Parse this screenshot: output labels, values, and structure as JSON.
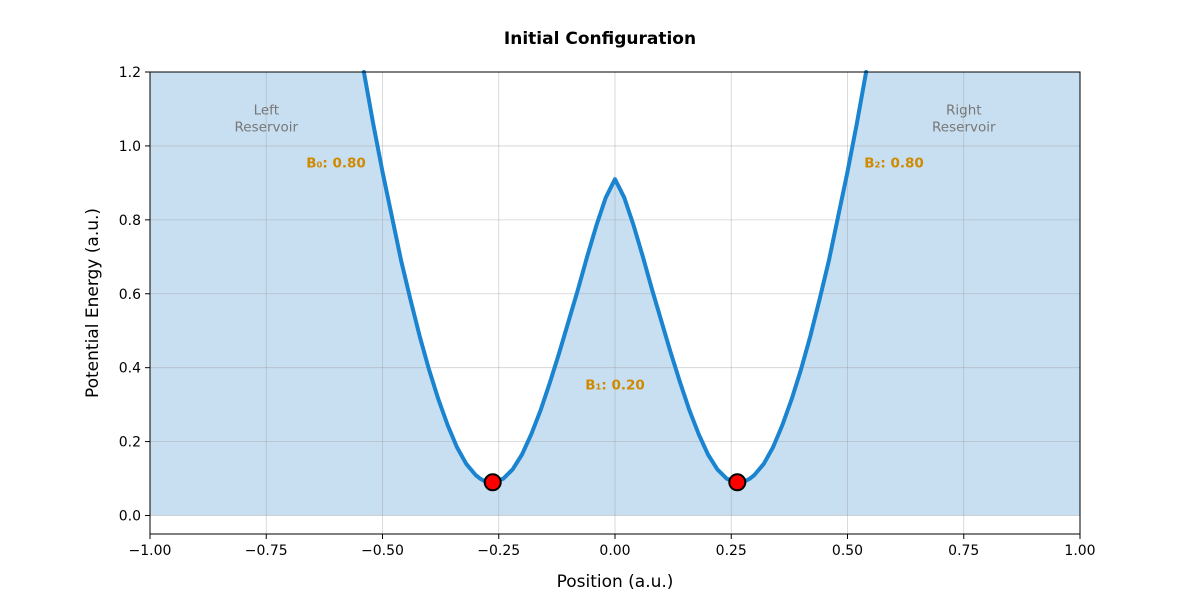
{
  "chart_data": {
    "type": "line",
    "title": "Initial Configuration",
    "xlabel": "Position (a.u.)",
    "ylabel": "Potential Energy (a.u.)",
    "xlim": [
      -1.0,
      1.0
    ],
    "ylim": [
      -0.05,
      1.2
    ],
    "grid": true,
    "x_ticks": [
      -1.0,
      -0.75,
      -0.5,
      -0.25,
      0.0,
      0.25,
      0.5,
      0.75,
      1.0
    ],
    "x_tick_labels": [
      "−1.00",
      "−0.75",
      "−0.50",
      "−0.25",
      "0.00",
      "0.25",
      "0.50",
      "0.75",
      "1.00"
    ],
    "y_ticks": [
      0.0,
      0.2,
      0.4,
      0.6,
      0.8,
      1.0,
      1.2
    ],
    "y_tick_labels": [
      "0.0",
      "0.2",
      "0.4",
      "0.6",
      "0.8",
      "1.0",
      "1.2"
    ],
    "series": [
      {
        "name": "potential",
        "color": "#1a84d0",
        "x": [
          -0.54,
          -0.52,
          -0.5,
          -0.48,
          -0.46,
          -0.44,
          -0.42,
          -0.4,
          -0.38,
          -0.36,
          -0.34,
          -0.32,
          -0.3,
          -0.29,
          -0.28,
          -0.27,
          -0.263,
          -0.255,
          -0.24,
          -0.22,
          -0.2,
          -0.18,
          -0.16,
          -0.14,
          -0.12,
          -0.1,
          -0.08,
          -0.06,
          -0.04,
          -0.02,
          0.0,
          0.02,
          0.04,
          0.06,
          0.08,
          0.1,
          0.12,
          0.14,
          0.16,
          0.18,
          0.2,
          0.22,
          0.24,
          0.255,
          0.263,
          0.27,
          0.28,
          0.29,
          0.3,
          0.32,
          0.34,
          0.36,
          0.38,
          0.4,
          0.42,
          0.44,
          0.46,
          0.48,
          0.5,
          0.52,
          0.54
        ],
        "y": [
          1.2,
          1.06,
          0.93,
          0.81,
          0.69,
          0.585,
          0.485,
          0.395,
          0.315,
          0.245,
          0.185,
          0.14,
          0.11,
          0.1,
          0.093,
          0.091,
          0.09,
          0.092,
          0.1,
          0.125,
          0.165,
          0.22,
          0.285,
          0.36,
          0.44,
          0.525,
          0.61,
          0.7,
          0.785,
          0.86,
          0.91,
          0.86,
          0.785,
          0.7,
          0.61,
          0.525,
          0.44,
          0.36,
          0.285,
          0.22,
          0.165,
          0.125,
          0.1,
          0.092,
          0.09,
          0.091,
          0.093,
          0.1,
          0.11,
          0.14,
          0.185,
          0.245,
          0.315,
          0.395,
          0.485,
          0.585,
          0.69,
          0.81,
          0.93,
          1.06,
          1.2
        ]
      }
    ],
    "fill_region": {
      "color": "#c8dff1",
      "description": "area below the potential curve",
      "regions": [
        {
          "label": "left reservoir fill",
          "x_from": -1.0,
          "x_to": -0.54
        },
        {
          "label": "right reservoir fill",
          "x_from": 0.54,
          "x_to": 1.0
        }
      ]
    },
    "particles": [
      {
        "name": "particle-left",
        "x": -0.263,
        "y": 0.09,
        "color": "#ff0000"
      },
      {
        "name": "particle-right",
        "x": 0.263,
        "y": 0.09,
        "color": "#ff0000"
      }
    ],
    "region_labels": [
      {
        "line1": "Left",
        "line2": "Reservoir",
        "x": -0.75,
        "y": 1.08
      },
      {
        "line1": "Right",
        "line2": "Reservoir",
        "x": 0.75,
        "y": 1.08
      }
    ],
    "barrier_labels": [
      {
        "text": "B₀: 0.80",
        "x": -0.6,
        "y": 0.955
      },
      {
        "text": "B₁: 0.20",
        "x": 0.0,
        "y": 0.355
      },
      {
        "text": "B₂: 0.80",
        "x": 0.6,
        "y": 0.955
      }
    ],
    "barrier_label_color": "#d08a00",
    "region_label_color": "#777777"
  }
}
